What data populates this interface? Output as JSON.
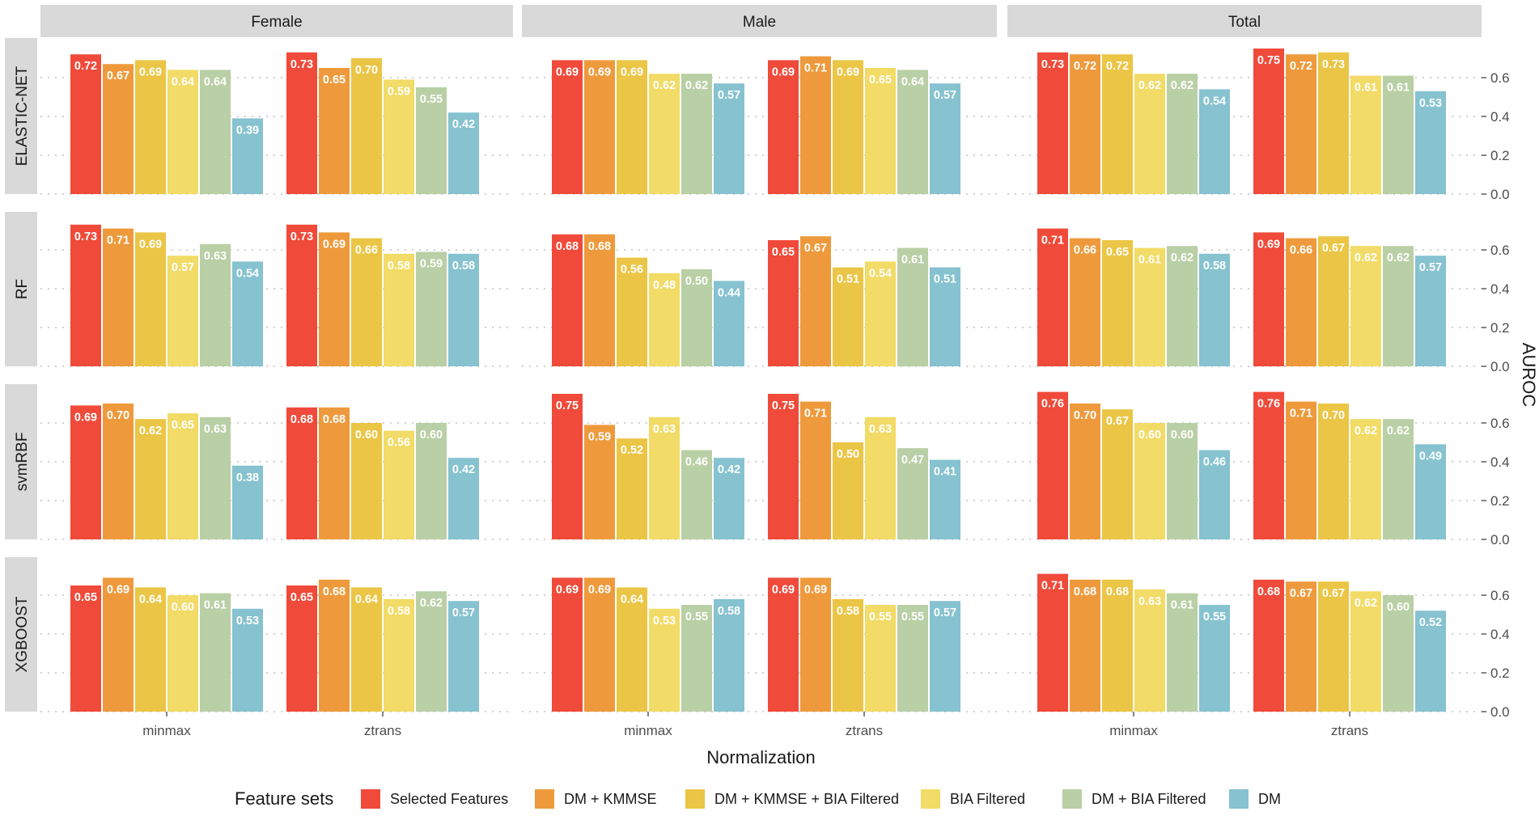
{
  "chart_data": {
    "type": "bar",
    "title": "",
    "xlabel": "Normalization",
    "ylabel": "AUROC",
    "ylim": [
      0,
      0.8
    ],
    "yticks": [
      0.0,
      0.2,
      0.4,
      0.6
    ],
    "ytick_labels": [
      "0.0",
      "0.2",
      "0.4",
      "0.6"
    ],
    "grid": true,
    "legend_position": "bottom",
    "legend_title": "Feature sets",
    "series_names": [
      "Selected Features",
      "DM + KMMSE",
      "DM + KMMSE + BIA Filtered",
      "BIA Filtered",
      "DM + BIA Filtered",
      "DM"
    ],
    "series_colors": [
      "#F04A3A",
      "#EE9A3C",
      "#EBC545",
      "#F2DB66",
      "#B9CFA5",
      "#86C2CF"
    ],
    "column_facets": [
      "Female",
      "Male",
      "Total"
    ],
    "row_facets": [
      "ELASTIC-NET",
      "RF",
      "svmRBF",
      "XGBOOST"
    ],
    "categories": [
      "minmax",
      "ztrans"
    ],
    "values": {
      "ELASTIC-NET": {
        "Female": {
          "minmax": [
            0.72,
            0.67,
            0.69,
            0.64,
            0.64,
            0.39
          ],
          "ztrans": [
            0.73,
            0.65,
            0.7,
            0.59,
            0.55,
            0.42
          ]
        },
        "Male": {
          "minmax": [
            0.69,
            0.69,
            0.69,
            0.62,
            0.62,
            0.57
          ],
          "ztrans": [
            0.69,
            0.71,
            0.69,
            0.65,
            0.64,
            0.57
          ]
        },
        "Total": {
          "minmax": [
            0.73,
            0.72,
            0.72,
            0.62,
            0.62,
            0.54
          ],
          "ztrans": [
            0.75,
            0.72,
            0.73,
            0.61,
            0.61,
            0.53
          ]
        }
      },
      "RF": {
        "Female": {
          "minmax": [
            0.73,
            0.71,
            0.69,
            0.57,
            0.63,
            0.54
          ],
          "ztrans": [
            0.73,
            0.69,
            0.66,
            0.58,
            0.59,
            0.58
          ]
        },
        "Male": {
          "minmax": [
            0.68,
            0.68,
            0.56,
            0.48,
            0.5,
            0.44
          ],
          "ztrans": [
            0.65,
            0.67,
            0.51,
            0.54,
            0.61,
            0.51
          ]
        },
        "Total": {
          "minmax": [
            0.71,
            0.66,
            0.65,
            0.61,
            0.62,
            0.58
          ],
          "ztrans": [
            0.69,
            0.66,
            0.67,
            0.62,
            0.62,
            0.57
          ]
        }
      },
      "svmRBF": {
        "Female": {
          "minmax": [
            0.69,
            0.7,
            0.62,
            0.65,
            0.63,
            0.38
          ],
          "ztrans": [
            0.68,
            0.68,
            0.6,
            0.56,
            0.6,
            0.42
          ]
        },
        "Male": {
          "minmax": [
            0.75,
            0.59,
            0.52,
            0.63,
            0.46,
            0.42
          ],
          "ztrans": [
            0.75,
            0.71,
            0.5,
            0.63,
            0.47,
            0.41
          ]
        },
        "Total": {
          "minmax": [
            0.76,
            0.7,
            0.67,
            0.6,
            0.6,
            0.46
          ],
          "ztrans": [
            0.76,
            0.71,
            0.7,
            0.62,
            0.62,
            0.49
          ]
        }
      },
      "XGBOOST": {
        "Female": {
          "minmax": [
            0.65,
            0.69,
            0.64,
            0.6,
            0.61,
            0.53
          ],
          "ztrans": [
            0.65,
            0.68,
            0.64,
            0.58,
            0.62,
            0.57
          ]
        },
        "Male": {
          "minmax": [
            0.69,
            0.69,
            0.64,
            0.53,
            0.55,
            0.58
          ],
          "ztrans": [
            0.69,
            0.69,
            0.58,
            0.55,
            0.55,
            0.57
          ]
        },
        "Total": {
          "minmax": [
            0.71,
            0.68,
            0.68,
            0.63,
            0.61,
            0.55
          ],
          "ztrans": [
            0.68,
            0.67,
            0.67,
            0.62,
            0.6,
            0.52
          ]
        }
      }
    }
  }
}
